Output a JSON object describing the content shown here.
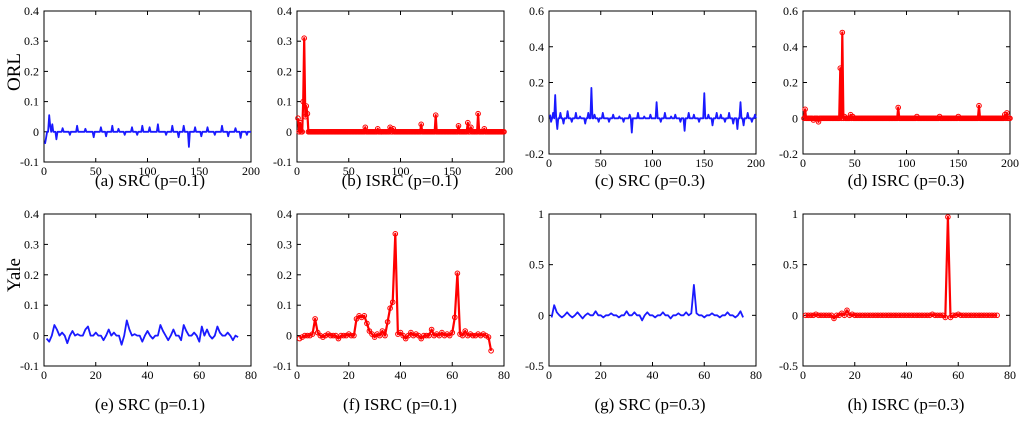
{
  "row_labels": [
    "ORL",
    "Yale"
  ],
  "colors": {
    "src": "#1a1aff",
    "isrc": "#ff0000",
    "axis": "#000000"
  },
  "chart_data": [
    {
      "type": "line",
      "title": "(a) SRC (p=0.1)",
      "row_label": "ORL",
      "series_color": "src",
      "markers": false,
      "xlim": [
        0,
        200
      ],
      "ylim": [
        -0.1,
        0.4
      ],
      "xticks": [
        0,
        50,
        100,
        150,
        200
      ],
      "yticks": [
        -0.1,
        0,
        0.1,
        0.2,
        0.3,
        0.4
      ],
      "xtick_labels": [
        "0",
        "50",
        "100",
        "150",
        "200"
      ],
      "ytick_labels": [
        "-0.1",
        "0",
        "0.1",
        "0.2",
        "0.3",
        "0.4"
      ],
      "n": 200,
      "points": [
        [
          1,
          -0.04
        ],
        [
          2,
          -0.02
        ],
        [
          5,
          0.055
        ],
        [
          6,
          0.02
        ],
        [
          8,
          0.025
        ],
        [
          12,
          -0.025
        ],
        [
          18,
          0.012
        ],
        [
          25,
          -0.01
        ],
        [
          32,
          0.02
        ],
        [
          40,
          0.01
        ],
        [
          48,
          -0.018
        ],
        [
          55,
          0.015
        ],
        [
          60,
          -0.015
        ],
        [
          66,
          0.02
        ],
        [
          72,
          0.01
        ],
        [
          78,
          -0.01
        ],
        [
          85,
          0.015
        ],
        [
          90,
          -0.01
        ],
        [
          95,
          0.02
        ],
        [
          102,
          0.015
        ],
        [
          110,
          0.025
        ],
        [
          118,
          -0.01
        ],
        [
          124,
          0.02
        ],
        [
          130,
          -0.018
        ],
        [
          135,
          0.02
        ],
        [
          140,
          -0.05
        ],
        [
          146,
          0.015
        ],
        [
          152,
          -0.015
        ],
        [
          158,
          0.015
        ],
        [
          165,
          -0.01
        ],
        [
          172,
          0.02
        ],
        [
          178,
          -0.015
        ],
        [
          185,
          0.012
        ],
        [
          190,
          -0.02
        ],
        [
          196,
          -0.01
        ]
      ]
    },
    {
      "type": "line",
      "title": "(b) ISRC (p=0.1)",
      "row_label": "ORL",
      "series_color": "isrc",
      "markers": true,
      "xlim": [
        0,
        200
      ],
      "ylim": [
        -0.1,
        0.4
      ],
      "xticks": [
        0,
        50,
        100,
        150,
        200
      ],
      "yticks": [
        -0.1,
        0,
        0.1,
        0.2,
        0.3,
        0.4
      ],
      "xtick_labels": [
        "0",
        "50",
        "100",
        "150",
        "200"
      ],
      "ytick_labels": [
        "-0.1",
        "0",
        "0.1",
        "0.2",
        "0.3",
        "0.4"
      ],
      "n": 200,
      "points": [
        [
          1,
          0.045
        ],
        [
          3,
          0.03
        ],
        [
          6,
          0.1
        ],
        [
          7,
          0.31
        ],
        [
          8,
          0.05
        ],
        [
          9,
          0.085
        ],
        [
          10,
          0.06
        ],
        [
          66,
          0.015
        ],
        [
          78,
          0.01
        ],
        [
          90,
          0.015
        ],
        [
          93,
          0.01
        ],
        [
          120,
          0.025
        ],
        [
          134,
          0.055
        ],
        [
          156,
          0.02
        ],
        [
          165,
          0.03
        ],
        [
          168,
          0.015
        ],
        [
          175,
          0.06
        ],
        [
          181,
          0.01
        ]
      ]
    },
    {
      "type": "line",
      "title": "(c) SRC (p=0.3)",
      "row_label": "ORL",
      "series_color": "src",
      "markers": false,
      "xlim": [
        0,
        200
      ],
      "ylim": [
        -0.2,
        0.6
      ],
      "xticks": [
        0,
        50,
        100,
        150,
        200
      ],
      "yticks": [
        -0.2,
        0,
        0.2,
        0.4,
        0.6
      ],
      "xtick_labels": [
        "0",
        "50",
        "100",
        "150",
        "200"
      ],
      "ytick_labels": [
        "-0.2",
        "0",
        "0.2",
        "0.4",
        "0.6"
      ],
      "n": 200,
      "points": [
        [
          1,
          0.02
        ],
        [
          2,
          -0.02
        ],
        [
          4,
          0.03
        ],
        [
          6,
          0.13
        ],
        [
          8,
          -0.06
        ],
        [
          11,
          0.03
        ],
        [
          14,
          -0.03
        ],
        [
          18,
          0.04
        ],
        [
          22,
          -0.02
        ],
        [
          26,
          0.03
        ],
        [
          30,
          0.01
        ],
        [
          35,
          -0.03
        ],
        [
          38,
          0.03
        ],
        [
          41,
          0.17
        ],
        [
          44,
          0.02
        ],
        [
          48,
          -0.02
        ],
        [
          52,
          0.03
        ],
        [
          58,
          -0.02
        ],
        [
          62,
          0.02
        ],
        [
          68,
          0.01
        ],
        [
          72,
          -0.02
        ],
        [
          78,
          0.02
        ],
        [
          80,
          -0.08
        ],
        [
          86,
          0.03
        ],
        [
          92,
          0.01
        ],
        [
          98,
          0.02
        ],
        [
          104,
          0.09
        ],
        [
          108,
          -0.02
        ],
        [
          112,
          0.03
        ],
        [
          118,
          0.01
        ],
        [
          122,
          0.02
        ],
        [
          127,
          -0.02
        ],
        [
          131,
          -0.07
        ],
        [
          135,
          0.03
        ],
        [
          140,
          0.02
        ],
        [
          145,
          -0.02
        ],
        [
          150,
          0.14
        ],
        [
          154,
          0.02
        ],
        [
          158,
          -0.04
        ],
        [
          162,
          0.03
        ],
        [
          166,
          0.02
        ],
        [
          170,
          -0.02
        ],
        [
          174,
          0.03
        ],
        [
          178,
          -0.03
        ],
        [
          182,
          -0.06
        ],
        [
          185,
          0.09
        ],
        [
          188,
          -0.04
        ],
        [
          192,
          0.03
        ],
        [
          196,
          -0.02
        ],
        [
          199,
          0.02
        ]
      ]
    },
    {
      "type": "line",
      "title": "(d) ISRC (p=0.3)",
      "row_label": "ORL",
      "series_color": "isrc",
      "markers": true,
      "xlim": [
        0,
        200
      ],
      "ylim": [
        -0.2,
        0.6
      ],
      "xticks": [
        0,
        50,
        100,
        150,
        200
      ],
      "yticks": [
        -0.2,
        0,
        0.2,
        0.4,
        0.6
      ],
      "xtick_labels": [
        "0",
        "50",
        "100",
        "150",
        "200"
      ],
      "ytick_labels": [
        "-0.2",
        "0",
        "0.2",
        "0.4",
        "0.6"
      ],
      "n": 200,
      "points": [
        [
          2,
          0.05
        ],
        [
          10,
          -0.01
        ],
        [
          15,
          -0.02
        ],
        [
          36,
          0.28
        ],
        [
          38,
          0.48
        ],
        [
          40,
          0.01
        ],
        [
          46,
          0.02
        ],
        [
          48,
          0.01
        ],
        [
          92,
          0.06
        ],
        [
          110,
          0.01
        ],
        [
          132,
          0.01
        ],
        [
          150,
          0.01
        ],
        [
          170,
          0.07
        ],
        [
          195,
          0.02
        ],
        [
          197,
          0.03
        ]
      ]
    },
    {
      "type": "line",
      "title": "(e) SRC (p=0.1)",
      "row_label": "Yale",
      "series_color": "src",
      "markers": false,
      "xlim": [
        0,
        80
      ],
      "ylim": [
        -0.1,
        0.4
      ],
      "xticks": [
        0,
        20,
        40,
        60,
        80
      ],
      "yticks": [
        -0.1,
        0,
        0.1,
        0.2,
        0.3,
        0.4
      ],
      "xtick_labels": [
        "0",
        "20",
        "40",
        "60",
        "80"
      ],
      "ytick_labels": [
        "-0.1",
        "0",
        "0.1",
        "0.2",
        "0.3",
        "0.4"
      ],
      "n": 75,
      "points": [
        [
          1,
          -0.01
        ],
        [
          2,
          -0.02
        ],
        [
          4,
          0.035
        ],
        [
          5,
          0.02
        ],
        [
          7,
          0.01
        ],
        [
          9,
          -0.025
        ],
        [
          11,
          0.015
        ],
        [
          13,
          0.005
        ],
        [
          16,
          0.02
        ],
        [
          17,
          0.03
        ],
        [
          20,
          0.01
        ],
        [
          23,
          -0.015
        ],
        [
          25,
          0.02
        ],
        [
          27,
          0.01
        ],
        [
          30,
          -0.03
        ],
        [
          32,
          0.05
        ],
        [
          33,
          0.02
        ],
        [
          35,
          0.005
        ],
        [
          38,
          -0.02
        ],
        [
          40,
          0.015
        ],
        [
          42,
          -0.01
        ],
        [
          45,
          0.035
        ],
        [
          46,
          0.015
        ],
        [
          48,
          -0.015
        ],
        [
          50,
          0.02
        ],
        [
          53,
          -0.015
        ],
        [
          54,
          0.035
        ],
        [
          55,
          0.015
        ],
        [
          58,
          0.01
        ],
        [
          60,
          -0.02
        ],
        [
          61,
          0.03
        ],
        [
          63,
          0.02
        ],
        [
          65,
          -0.01
        ],
        [
          67,
          0.03
        ],
        [
          68,
          0.01
        ],
        [
          71,
          0.01
        ],
        [
          73,
          -0.015
        ],
        [
          75,
          -0.005
        ]
      ]
    },
    {
      "type": "line",
      "title": "(f) ISRC (p=0.1)",
      "row_label": "Yale",
      "series_color": "isrc",
      "markers": true,
      "xlim": [
        0,
        80
      ],
      "ylim": [
        -0.1,
        0.4
      ],
      "xticks": [
        0,
        20,
        40,
        60,
        80
      ],
      "yticks": [
        -0.1,
        0,
        0.1,
        0.2,
        0.3,
        0.4
      ],
      "xtick_labels": [
        "0",
        "20",
        "40",
        "60",
        "80"
      ],
      "ytick_labels": [
        "-0.1",
        "0",
        "0.1",
        "0.2",
        "0.3",
        "0.4"
      ],
      "n": 75,
      "points": [
        [
          1,
          -0.01
        ],
        [
          2,
          -0.005
        ],
        [
          6,
          0.005
        ],
        [
          7,
          0.055
        ],
        [
          8,
          0.01
        ],
        [
          10,
          -0.005
        ],
        [
          12,
          0.005
        ],
        [
          16,
          -0.01
        ],
        [
          20,
          0.005
        ],
        [
          23,
          0.055
        ],
        [
          24,
          0.065
        ],
        [
          25,
          0.06
        ],
        [
          26,
          0.065
        ],
        [
          27,
          0.04
        ],
        [
          28,
          0.015
        ],
        [
          29,
          0.005
        ],
        [
          30,
          -0.005
        ],
        [
          31,
          0.005
        ],
        [
          33,
          0.015
        ],
        [
          35,
          0.045
        ],
        [
          36,
          0.09
        ],
        [
          37,
          0.11
        ],
        [
          38,
          0.335
        ],
        [
          39,
          0.005
        ],
        [
          40,
          0.01
        ],
        [
          42,
          -0.01
        ],
        [
          44,
          0.01
        ],
        [
          46,
          0.005
        ],
        [
          48,
          -0.01
        ],
        [
          52,
          0.02
        ],
        [
          54,
          0.005
        ],
        [
          56,
          0.01
        ],
        [
          58,
          0.005
        ],
        [
          60,
          0.01
        ],
        [
          61,
          0.06
        ],
        [
          62,
          0.205
        ],
        [
          63,
          0.005
        ],
        [
          65,
          0.015
        ],
        [
          67,
          0.005
        ],
        [
          70,
          0.005
        ],
        [
          72,
          0.005
        ],
        [
          74,
          -0.005
        ],
        [
          75,
          -0.05
        ]
      ]
    },
    {
      "type": "line",
      "title": "(g) SRC (p=0.3)",
      "row_label": "Yale",
      "series_color": "src",
      "markers": false,
      "xlim": [
        0,
        80
      ],
      "ylim": [
        -0.5,
        1
      ],
      "xticks": [
        0,
        20,
        40,
        60,
        80
      ],
      "yticks": [
        -0.5,
        0,
        0.5,
        1
      ],
      "xtick_labels": [
        "0",
        "20",
        "40",
        "60",
        "80"
      ],
      "ytick_labels": [
        "-0.5",
        "0",
        "0.5",
        "1"
      ],
      "n": 75,
      "points": [
        [
          1,
          -0.02
        ],
        [
          2,
          0.1
        ],
        [
          3,
          0.03
        ],
        [
          5,
          -0.02
        ],
        [
          7,
          0.03
        ],
        [
          9,
          -0.02
        ],
        [
          11,
          0.03
        ],
        [
          13,
          -0.03
        ],
        [
          15,
          0.02
        ],
        [
          18,
          0.04
        ],
        [
          21,
          -0.02
        ],
        [
          24,
          0.02
        ],
        [
          27,
          -0.02
        ],
        [
          30,
          0.04
        ],
        [
          33,
          0.03
        ],
        [
          36,
          -0.05
        ],
        [
          38,
          0.03
        ],
        [
          41,
          -0.02
        ],
        [
          44,
          0.03
        ],
        [
          47,
          -0.03
        ],
        [
          50,
          0.02
        ],
        [
          53,
          0.03
        ],
        [
          55,
          0.02
        ],
        [
          56,
          0.3
        ],
        [
          57,
          0.02
        ],
        [
          60,
          -0.02
        ],
        [
          63,
          0.02
        ],
        [
          66,
          -0.02
        ],
        [
          69,
          0.03
        ],
        [
          72,
          -0.02
        ],
        [
          74,
          0.04
        ],
        [
          75,
          -0.02
        ]
      ]
    },
    {
      "type": "line",
      "title": "(h) ISRC (p=0.3)",
      "row_label": "Yale",
      "series_color": "isrc",
      "markers": true,
      "xlim": [
        0,
        80
      ],
      "ylim": [
        -0.5,
        1
      ],
      "xticks": [
        0,
        20,
        40,
        60,
        80
      ],
      "yticks": [
        -0.5,
        0,
        0.5,
        1
      ],
      "xtick_labels": [
        "0",
        "20",
        "40",
        "60",
        "80"
      ],
      "ytick_labels": [
        "-0.5",
        "0",
        "0.5",
        "1"
      ],
      "n": 75,
      "points": [
        [
          5,
          0.01
        ],
        [
          12,
          -0.03
        ],
        [
          15,
          0.02
        ],
        [
          17,
          0.05
        ],
        [
          19,
          0.01
        ],
        [
          50,
          0.01
        ],
        [
          55,
          -0.02
        ],
        [
          56,
          0.97
        ],
        [
          57,
          -0.02
        ],
        [
          60,
          0.01
        ]
      ]
    }
  ]
}
